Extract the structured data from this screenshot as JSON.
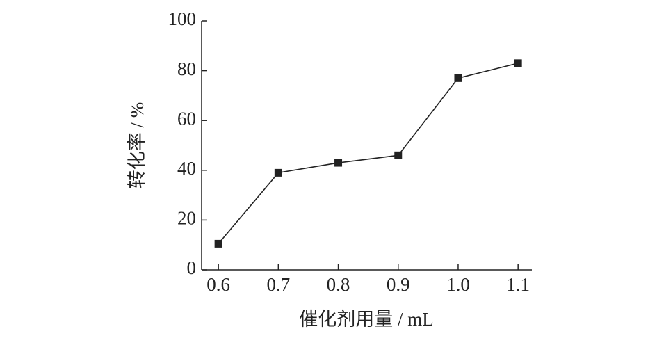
{
  "chart_data": {
    "type": "line",
    "xlabel": "催化剂用量 / mL",
    "ylabel": "转化率 / %",
    "x": [
      0.6,
      0.7,
      0.8,
      0.9,
      1.0,
      1.1
    ],
    "series": [
      {
        "name": "转化率",
        "color": "#222222",
        "values": [
          10.5,
          39,
          43,
          46,
          77,
          83
        ]
      }
    ],
    "xlim": [
      0.572,
      1.123
    ],
    "xticks": [
      0.6,
      0.7,
      0.8,
      0.9,
      {
        "value": 1.0,
        "label": "1.0"
      },
      1.1
    ],
    "ylim": [
      0,
      100
    ],
    "yticks": [
      0,
      20,
      40,
      60,
      80,
      100
    ],
    "marker": "square"
  }
}
